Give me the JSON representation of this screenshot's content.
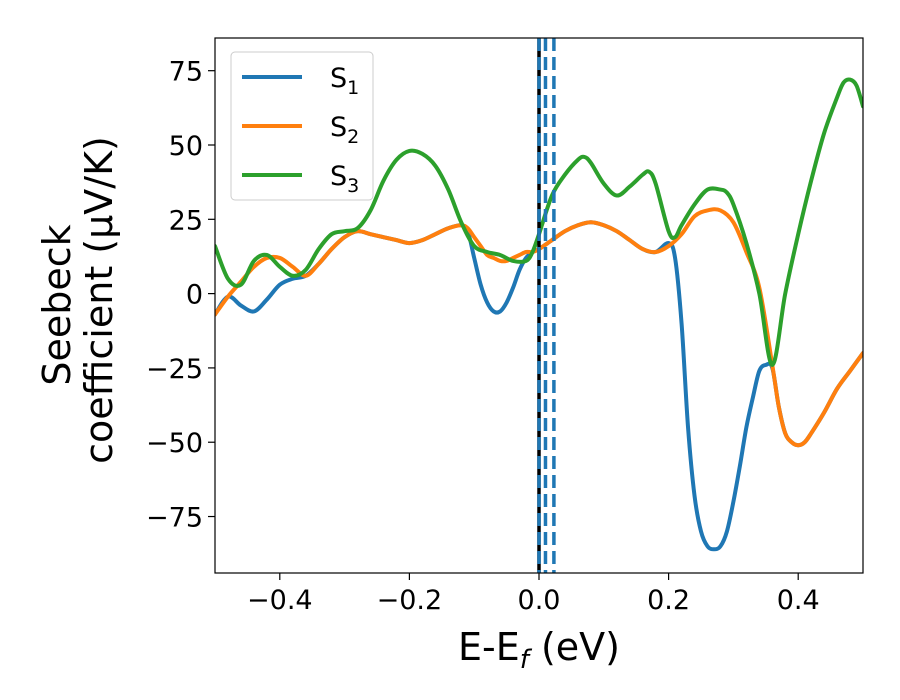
{
  "chart_data": {
    "type": "line",
    "xlabel_main": "E-E",
    "xlabel_sub": "f",
    "xlabel_unit": " (eV)",
    "ylabel_line1": "Seebeck",
    "ylabel_line2": "coefficient  (μV/K)",
    "xlim": [
      -0.5,
      0.5
    ],
    "ylim": [
      -94,
      86
    ],
    "xticks": [
      -0.4,
      -0.2,
      0.0,
      0.2,
      0.4
    ],
    "xtick_labels": [
      "−0.4",
      "−0.2",
      "0.0",
      "0.2",
      "0.4"
    ],
    "yticks": [
      75,
      50,
      25,
      0,
      -25,
      -50,
      -75
    ],
    "ytick_labels": [
      "75",
      "50",
      "25",
      "0",
      "−25",
      "−50",
      "−75"
    ],
    "grid": false,
    "legend_position": "top-left",
    "series": [
      {
        "name_base": "S",
        "name_sub": "1",
        "color": "#1f77b4",
        "x": [
          -0.5,
          -0.48,
          -0.46,
          -0.44,
          -0.42,
          -0.4,
          -0.38,
          -0.36,
          -0.34,
          -0.32,
          -0.3,
          -0.28,
          -0.26,
          -0.24,
          -0.22,
          -0.2,
          -0.18,
          -0.16,
          -0.14,
          -0.12,
          -0.11,
          -0.1,
          -0.09,
          -0.08,
          -0.07,
          -0.06,
          -0.05,
          -0.04,
          -0.03,
          -0.02,
          -0.01,
          0.0,
          0.02,
          0.04,
          0.06,
          0.08,
          0.1,
          0.12,
          0.14,
          0.16,
          0.18,
          0.2,
          0.21,
          0.22,
          0.23,
          0.24,
          0.25,
          0.26,
          0.27,
          0.28,
          0.29,
          0.3,
          0.31,
          0.32,
          0.33,
          0.34,
          0.35,
          0.36,
          0.37,
          0.38,
          0.39,
          0.4,
          0.41,
          0.42,
          0.44,
          0.46,
          0.48,
          0.5
        ],
        "values": [
          -7,
          -1,
          -4,
          -6,
          -2,
          3,
          5,
          6,
          10,
          15,
          19,
          21,
          20,
          19,
          18,
          17,
          18,
          20,
          22,
          23,
          21,
          12,
          3,
          -3,
          -6,
          -6,
          -3,
          2,
          8,
          12,
          14,
          15,
          18,
          21,
          23,
          24,
          23,
          21,
          18,
          15,
          14,
          17,
          12,
          -10,
          -45,
          -68,
          -80,
          -85,
          -86,
          -85,
          -80,
          -70,
          -58,
          -45,
          -35,
          -26,
          -24,
          -25,
          -38,
          -47,
          -50,
          -51,
          -50,
          -47,
          -40,
          -32,
          -26,
          -20
        ]
      },
      {
        "name_base": "S",
        "name_sub": "2",
        "color": "#ff7f0e",
        "x": [
          -0.5,
          -0.48,
          -0.46,
          -0.44,
          -0.42,
          -0.4,
          -0.38,
          -0.36,
          -0.34,
          -0.32,
          -0.3,
          -0.28,
          -0.26,
          -0.24,
          -0.22,
          -0.2,
          -0.18,
          -0.16,
          -0.14,
          -0.12,
          -0.11,
          -0.1,
          -0.09,
          -0.08,
          -0.07,
          -0.06,
          -0.05,
          -0.04,
          -0.03,
          -0.02,
          -0.01,
          0.0,
          0.02,
          0.04,
          0.06,
          0.08,
          0.1,
          0.12,
          0.14,
          0.16,
          0.18,
          0.2,
          0.22,
          0.24,
          0.26,
          0.28,
          0.3,
          0.32,
          0.34,
          0.36,
          0.37,
          0.38,
          0.39,
          0.4,
          0.41,
          0.42,
          0.44,
          0.46,
          0.48,
          0.5
        ],
        "values": [
          -7,
          -1,
          4,
          9,
          12,
          12,
          9,
          6,
          10,
          15,
          19,
          21,
          20,
          19,
          18,
          17,
          18,
          20,
          22,
          23,
          22,
          19,
          16,
          13,
          12,
          11,
          11,
          12,
          13,
          14,
          14,
          15,
          18,
          21,
          23,
          24,
          23,
          21,
          18,
          15,
          14,
          16,
          20,
          26,
          28,
          28,
          24,
          14,
          2,
          -24,
          -38,
          -47,
          -50,
          -51,
          -50,
          -47,
          -40,
          -32,
          -26,
          -20
        ]
      },
      {
        "name_base": "S",
        "name_sub": "3",
        "color": "#2ca02c",
        "x": [
          -0.5,
          -0.48,
          -0.46,
          -0.44,
          -0.42,
          -0.4,
          -0.38,
          -0.36,
          -0.34,
          -0.32,
          -0.3,
          -0.28,
          -0.26,
          -0.24,
          -0.22,
          -0.2,
          -0.18,
          -0.16,
          -0.14,
          -0.12,
          -0.1,
          -0.08,
          -0.06,
          -0.04,
          -0.02,
          -0.01,
          0.0,
          0.02,
          0.04,
          0.06,
          0.07,
          0.08,
          0.1,
          0.12,
          0.14,
          0.16,
          0.17,
          0.18,
          0.2,
          0.21,
          0.22,
          0.24,
          0.26,
          0.28,
          0.29,
          0.3,
          0.32,
          0.34,
          0.36,
          0.38,
          0.4,
          0.42,
          0.44,
          0.46,
          0.47,
          0.48,
          0.49,
          0.5
        ],
        "values": [
          16,
          5,
          3,
          11,
          13,
          9,
          6,
          8,
          15,
          20,
          21,
          22,
          28,
          38,
          45,
          48,
          47,
          43,
          35,
          24,
          16,
          14,
          13,
          11,
          11,
          14,
          20,
          33,
          40,
          45,
          46,
          44,
          37,
          33,
          36,
          40,
          41,
          37,
          21,
          19,
          23,
          30,
          35,
          35,
          34,
          30,
          17,
          0,
          -24,
          0,
          20,
          38,
          54,
          66,
          71,
          72,
          70,
          63
        ]
      }
    ],
    "vlines": [
      {
        "x": 0.0,
        "color": "#000000",
        "style": "solid"
      },
      {
        "x": 0.0,
        "color": "#1f77b4",
        "style": "dashed"
      },
      {
        "x": 0.01,
        "color": "#1f77b4",
        "style": "dashed"
      },
      {
        "x": 0.023,
        "color": "#1f77b4",
        "style": "dashed"
      }
    ]
  }
}
